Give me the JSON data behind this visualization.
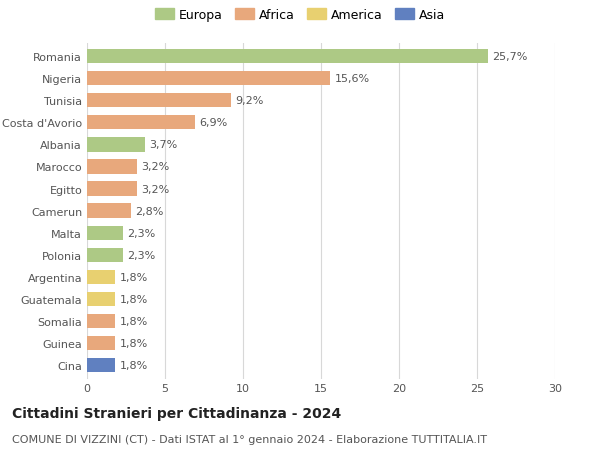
{
  "countries": [
    "Romania",
    "Nigeria",
    "Tunisia",
    "Costa d'Avorio",
    "Albania",
    "Marocco",
    "Egitto",
    "Camerun",
    "Malta",
    "Polonia",
    "Argentina",
    "Guatemala",
    "Somalia",
    "Guinea",
    "Cina"
  ],
  "values": [
    25.7,
    15.6,
    9.2,
    6.9,
    3.7,
    3.2,
    3.2,
    2.8,
    2.3,
    2.3,
    1.8,
    1.8,
    1.8,
    1.8,
    1.8
  ],
  "continents": [
    "Europa",
    "Africa",
    "Africa",
    "Africa",
    "Europa",
    "Africa",
    "Africa",
    "Africa",
    "Europa",
    "Europa",
    "America",
    "America",
    "Africa",
    "Africa",
    "Asia"
  ],
  "colors": {
    "Europa": "#adc985",
    "Africa": "#e8a87c",
    "America": "#e8d070",
    "Asia": "#6080c0"
  },
  "legend_order": [
    "Europa",
    "Africa",
    "America",
    "Asia"
  ],
  "title": "Cittadini Stranieri per Cittadinanza - 2024",
  "subtitle": "COMUNE DI VIZZINI (CT) - Dati ISTAT al 1° gennaio 2024 - Elaborazione TUTTITALIA.IT",
  "xlim": [
    0,
    30
  ],
  "xticks": [
    0,
    5,
    10,
    15,
    20,
    25,
    30
  ],
  "background_color": "#ffffff",
  "grid_color": "#d8d8d8",
  "bar_height": 0.65,
  "title_fontsize": 10,
  "subtitle_fontsize": 8,
  "tick_fontsize": 8,
  "value_fontsize": 8,
  "legend_fontsize": 9
}
